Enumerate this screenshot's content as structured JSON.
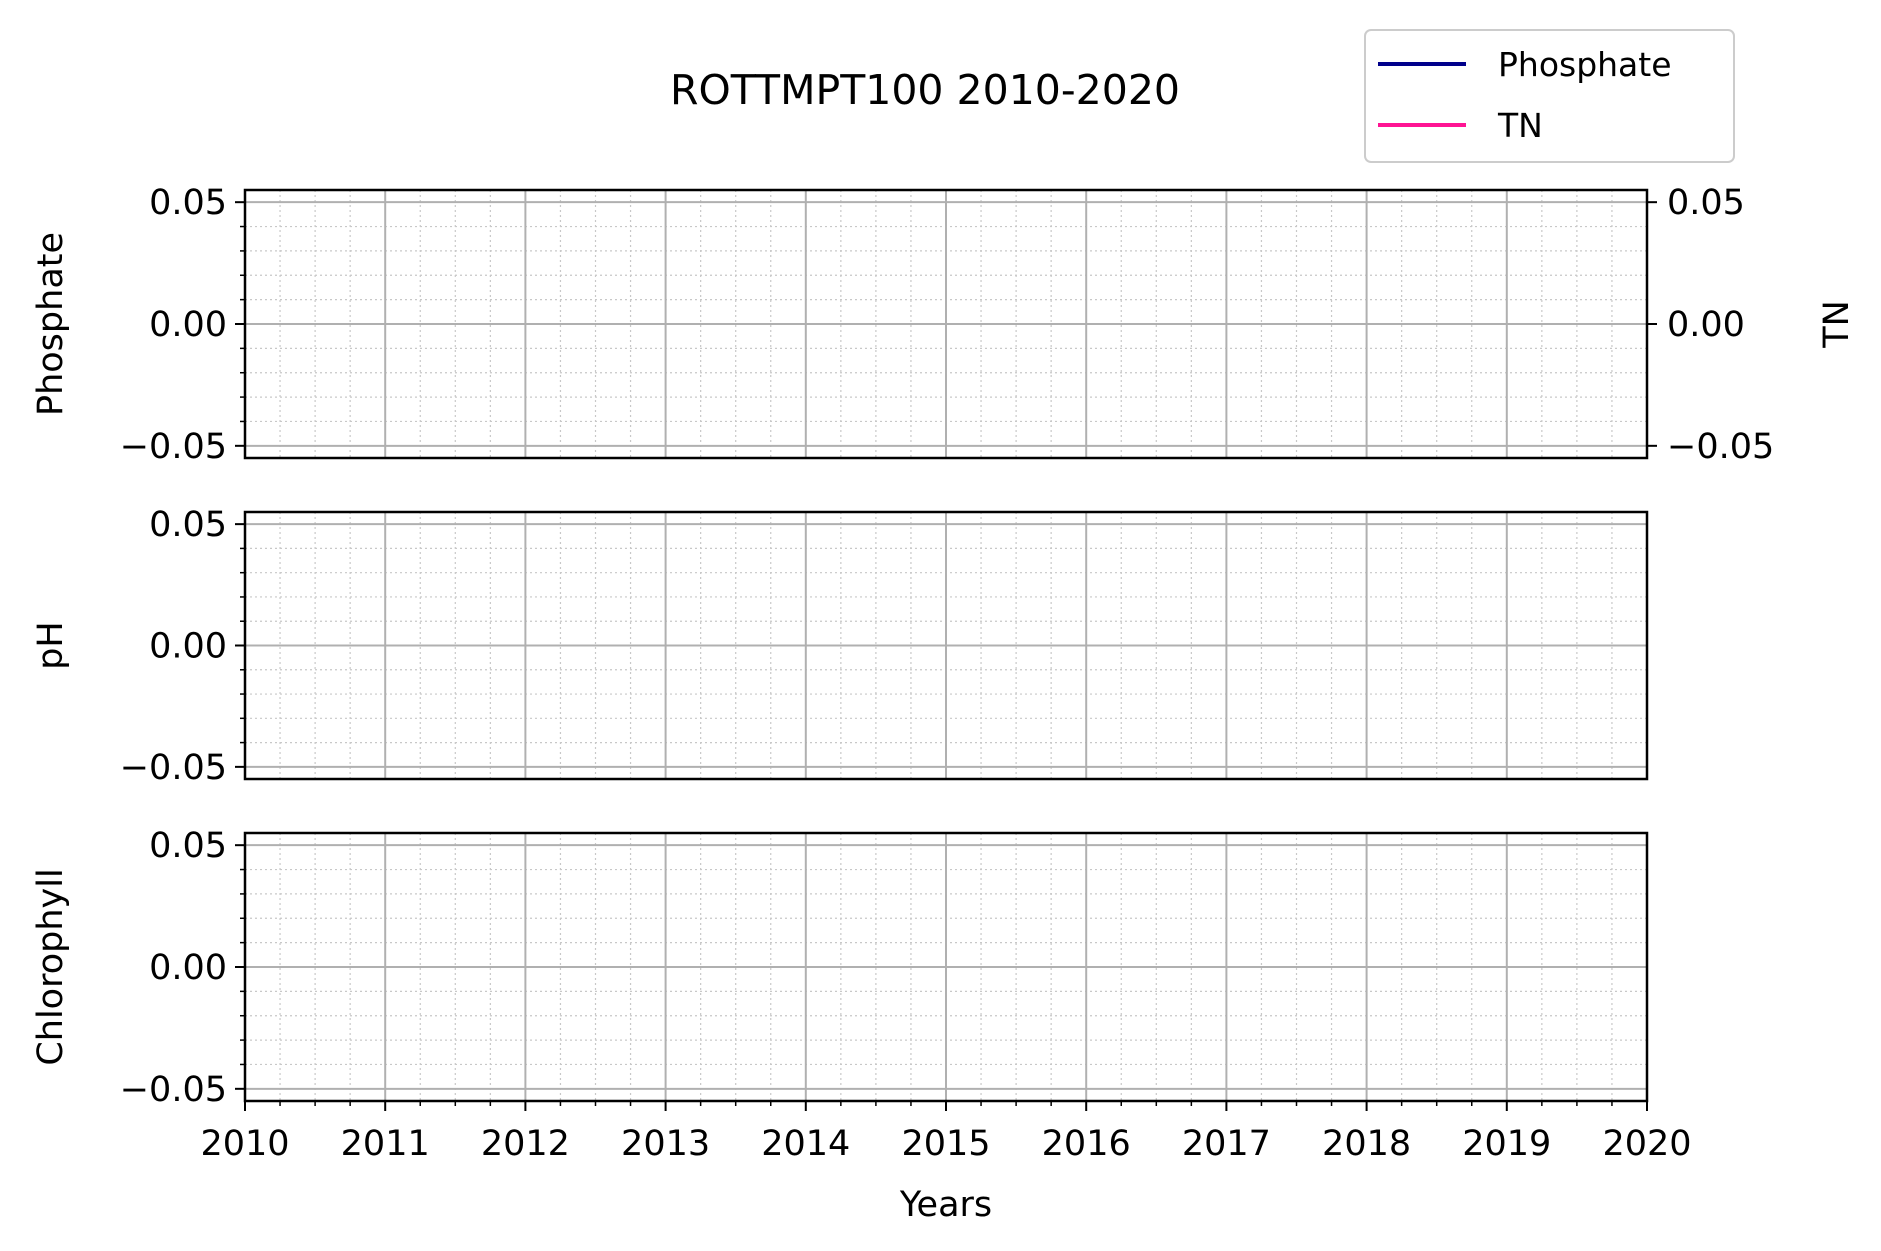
{
  "chart_data": {
    "type": "line",
    "title": "ROTTMPT100 2010-2020",
    "xlabel": "Years",
    "xlim": [
      2010,
      2020
    ],
    "x_ticks": [
      "2010",
      "2011",
      "2012",
      "2013",
      "2014",
      "2015",
      "2016",
      "2017",
      "2018",
      "2019",
      "2020"
    ],
    "x_minor_per_year": 4,
    "grid": true,
    "legend": {
      "position": "top-right",
      "entries": [
        {
          "name": "Phosphate",
          "color": "#00008b"
        },
        {
          "name": "TN",
          "color": "#ff1493"
        }
      ]
    },
    "panels": [
      {
        "ylabel": "Phosphate",
        "ylim": [
          -0.055,
          0.055
        ],
        "y_ticks": [
          "0.05",
          "0.00",
          "−0.05"
        ],
        "y_tick_values": [
          0.05,
          0.0,
          -0.05
        ],
        "secondary_axis": {
          "ylabel": "TN",
          "ylim": [
            -0.055,
            0.055
          ],
          "y_ticks": [
            "0.05",
            "0.00",
            "−0.05"
          ],
          "y_tick_values": [
            0.05,
            0.0,
            -0.05
          ]
        },
        "series": [
          {
            "name": "Phosphate",
            "color": "#00008b",
            "values": []
          },
          {
            "name": "TN",
            "color": "#ff1493",
            "values": []
          }
        ]
      },
      {
        "ylabel": "pH",
        "ylim": [
          -0.055,
          0.055
        ],
        "y_ticks": [
          "0.05",
          "0.00",
          "−0.05"
        ],
        "y_tick_values": [
          0.05,
          0.0,
          -0.05
        ],
        "series": []
      },
      {
        "ylabel": "Chlorophyll",
        "ylim": [
          -0.055,
          0.055
        ],
        "y_ticks": [
          "0.05",
          "0.00",
          "−0.05"
        ],
        "y_tick_values": [
          0.05,
          0.0,
          -0.05
        ],
        "series": []
      }
    ]
  }
}
